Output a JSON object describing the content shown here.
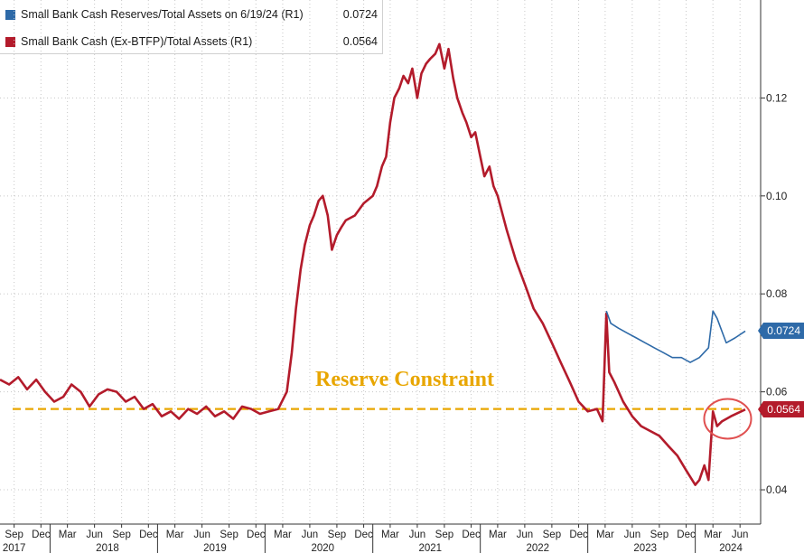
{
  "chart_data": {
    "type": "line",
    "legend": [
      {
        "name": "Small Bank Cash Reserves/Total Assets on 6/19/24 (R1)",
        "value": "0.0724",
        "color": "#2e6aa8"
      },
      {
        "name": "Small Bank Cash (Ex-BTFP)/Total Assets (R1)",
        "value": "0.0564",
        "color": "#b31b2b"
      }
    ],
    "legend_placement": "top-left",
    "y_axis": {
      "side": "right",
      "ylim": [
        0.033,
        0.14
      ],
      "ticks": [
        {
          "value": 0.04,
          "label": "0.04"
        },
        {
          "value": 0.06,
          "label": "0.06"
        },
        {
          "value": 0.08,
          "label": "0.08"
        },
        {
          "value": 0.1,
          "label": "0.10"
        },
        {
          "value": 0.12,
          "label": "0.12"
        }
      ]
    },
    "x_axis": {
      "xlim": [
        "2017-07-15",
        "2024-08-10"
      ],
      "month_ticks": [
        {
          "date": "2017-09-01",
          "label": "Sep"
        },
        {
          "date": "2017-12-01",
          "label": "Dec"
        },
        {
          "date": "2018-03-01",
          "label": "Mar"
        },
        {
          "date": "2018-06-01",
          "label": "Jun"
        },
        {
          "date": "2018-09-01",
          "label": "Sep"
        },
        {
          "date": "2018-12-01",
          "label": "Dec"
        },
        {
          "date": "2019-03-01",
          "label": "Mar"
        },
        {
          "date": "2019-06-01",
          "label": "Jun"
        },
        {
          "date": "2019-09-01",
          "label": "Sep"
        },
        {
          "date": "2019-12-01",
          "label": "Dec"
        },
        {
          "date": "2020-03-01",
          "label": "Mar"
        },
        {
          "date": "2020-06-01",
          "label": "Jun"
        },
        {
          "date": "2020-09-01",
          "label": "Sep"
        },
        {
          "date": "2020-12-01",
          "label": "Dec"
        },
        {
          "date": "2021-03-01",
          "label": "Mar"
        },
        {
          "date": "2021-06-01",
          "label": "Jun"
        },
        {
          "date": "2021-09-01",
          "label": "Sep"
        },
        {
          "date": "2021-12-01",
          "label": "Dec"
        },
        {
          "date": "2022-03-01",
          "label": "Mar"
        },
        {
          "date": "2022-06-01",
          "label": "Jun"
        },
        {
          "date": "2022-09-01",
          "label": "Sep"
        },
        {
          "date": "2022-12-01",
          "label": "Dec"
        },
        {
          "date": "2023-03-01",
          "label": "Mar"
        },
        {
          "date": "2023-06-01",
          "label": "Jun"
        },
        {
          "date": "2023-09-01",
          "label": "Sep"
        },
        {
          "date": "2023-12-01",
          "label": "Dec"
        },
        {
          "date": "2024-03-01",
          "label": "Mar"
        },
        {
          "date": "2024-06-01",
          "label": "Jun"
        }
      ],
      "year_labels": [
        {
          "date": "2017-09-01",
          "label": "2017"
        },
        {
          "date": "2018-07-15",
          "label": "2018"
        },
        {
          "date": "2019-07-15",
          "label": "2019"
        },
        {
          "date": "2020-07-15",
          "label": "2020"
        },
        {
          "date": "2021-07-15",
          "label": "2021"
        },
        {
          "date": "2022-07-15",
          "label": "2022"
        },
        {
          "date": "2023-07-15",
          "label": "2023"
        },
        {
          "date": "2024-05-01",
          "label": "2024"
        }
      ],
      "year_separators": [
        "2018-01-01",
        "2019-01-01",
        "2020-01-01",
        "2021-01-01",
        "2022-01-01",
        "2023-01-01",
        "2024-01-01"
      ]
    },
    "grid": "vertical-dotted",
    "series": [
      {
        "key": "ex_btfp",
        "color": "#b31b2b",
        "points": [
          [
            "2017-07-15",
            0.0625
          ],
          [
            "2017-08-15",
            0.0615
          ],
          [
            "2017-09-15",
            0.063
          ],
          [
            "2017-10-15",
            0.0605
          ],
          [
            "2017-11-15",
            0.0625
          ],
          [
            "2017-12-15",
            0.06
          ],
          [
            "2018-01-15",
            0.058
          ],
          [
            "2018-02-15",
            0.059
          ],
          [
            "2018-03-15",
            0.0615
          ],
          [
            "2018-04-15",
            0.06
          ],
          [
            "2018-05-15",
            0.057
          ],
          [
            "2018-06-15",
            0.0595
          ],
          [
            "2018-07-15",
            0.0605
          ],
          [
            "2018-08-15",
            0.06
          ],
          [
            "2018-09-15",
            0.058
          ],
          [
            "2018-10-15",
            0.059
          ],
          [
            "2018-11-15",
            0.0565
          ],
          [
            "2018-12-15",
            0.0575
          ],
          [
            "2019-01-15",
            0.055
          ],
          [
            "2019-02-15",
            0.056
          ],
          [
            "2019-03-15",
            0.0545
          ],
          [
            "2019-04-15",
            0.0565
          ],
          [
            "2019-05-15",
            0.0555
          ],
          [
            "2019-06-15",
            0.057
          ],
          [
            "2019-07-15",
            0.055
          ],
          [
            "2019-08-15",
            0.056
          ],
          [
            "2019-09-15",
            0.0545
          ],
          [
            "2019-10-15",
            0.057
          ],
          [
            "2019-11-15",
            0.0565
          ],
          [
            "2019-12-15",
            0.0555
          ],
          [
            "2020-01-15",
            0.056
          ],
          [
            "2020-02-15",
            0.0565
          ],
          [
            "2020-03-15",
            0.06
          ],
          [
            "2020-04-01",
            0.068
          ],
          [
            "2020-04-15",
            0.077
          ],
          [
            "2020-05-01",
            0.085
          ],
          [
            "2020-05-15",
            0.09
          ],
          [
            "2020-06-01",
            0.094
          ],
          [
            "2020-06-15",
            0.096
          ],
          [
            "2020-07-01",
            0.099
          ],
          [
            "2020-07-15",
            0.1
          ],
          [
            "2020-08-01",
            0.096
          ],
          [
            "2020-08-15",
            0.089
          ],
          [
            "2020-09-01",
            0.092
          ],
          [
            "2020-09-15",
            0.0935
          ],
          [
            "2020-10-01",
            0.095
          ],
          [
            "2020-11-01",
            0.096
          ],
          [
            "2020-12-01",
            0.0985
          ],
          [
            "2021-01-01",
            0.1
          ],
          [
            "2021-01-15",
            0.102
          ],
          [
            "2021-02-01",
            0.106
          ],
          [
            "2021-02-15",
            0.108
          ],
          [
            "2021-03-01",
            0.115
          ],
          [
            "2021-03-15",
            0.12
          ],
          [
            "2021-04-01",
            0.122
          ],
          [
            "2021-04-15",
            0.1245
          ],
          [
            "2021-05-01",
            0.123
          ],
          [
            "2021-05-15",
            0.126
          ],
          [
            "2021-06-01",
            0.12
          ],
          [
            "2021-06-15",
            0.125
          ],
          [
            "2021-07-01",
            0.127
          ],
          [
            "2021-07-15",
            0.128
          ],
          [
            "2021-08-01",
            0.129
          ],
          [
            "2021-08-15",
            0.131
          ],
          [
            "2021-09-01",
            0.126
          ],
          [
            "2021-09-15",
            0.13
          ],
          [
            "2021-10-01",
            0.124
          ],
          [
            "2021-10-15",
            0.12
          ],
          [
            "2021-11-01",
            0.117
          ],
          [
            "2021-11-15",
            0.115
          ],
          [
            "2021-12-01",
            0.112
          ],
          [
            "2021-12-15",
            0.113
          ],
          [
            "2022-01-01",
            0.108
          ],
          [
            "2022-01-15",
            0.104
          ],
          [
            "2022-02-01",
            0.106
          ],
          [
            "2022-02-15",
            0.102
          ],
          [
            "2022-03-01",
            0.1
          ],
          [
            "2022-04-01",
            0.093
          ],
          [
            "2022-05-01",
            0.087
          ],
          [
            "2022-06-01",
            0.082
          ],
          [
            "2022-07-01",
            0.077
          ],
          [
            "2022-08-01",
            0.074
          ],
          [
            "2022-09-01",
            0.07
          ],
          [
            "2022-10-01",
            0.066
          ],
          [
            "2022-11-01",
            0.062
          ],
          [
            "2022-12-01",
            0.058
          ],
          [
            "2023-01-01",
            0.056
          ],
          [
            "2023-02-01",
            0.0565
          ],
          [
            "2023-02-20",
            0.054
          ],
          [
            "2023-03-05",
            0.076
          ],
          [
            "2023-03-15",
            0.064
          ],
          [
            "2023-04-01",
            0.062
          ],
          [
            "2023-05-01",
            0.058
          ],
          [
            "2023-06-01",
            0.055
          ],
          [
            "2023-07-01",
            0.053
          ],
          [
            "2023-08-01",
            0.052
          ],
          [
            "2023-09-01",
            0.051
          ],
          [
            "2023-10-01",
            0.049
          ],
          [
            "2023-11-01",
            0.047
          ],
          [
            "2023-12-01",
            0.044
          ],
          [
            "2024-01-01",
            0.041
          ],
          [
            "2024-01-15",
            0.042
          ],
          [
            "2024-02-01",
            0.045
          ],
          [
            "2024-02-15",
            0.042
          ],
          [
            "2024-03-01",
            0.056
          ],
          [
            "2024-03-15",
            0.053
          ],
          [
            "2024-04-01",
            0.054
          ],
          [
            "2024-05-01",
            0.055
          ],
          [
            "2024-06-19",
            0.0564
          ]
        ]
      },
      {
        "key": "reserves",
        "color": "#2e6aa8",
        "points": [
          [
            "2023-03-05",
            0.0765
          ],
          [
            "2023-03-20",
            0.074
          ],
          [
            "2023-04-15",
            0.073
          ],
          [
            "2023-05-15",
            0.072
          ],
          [
            "2023-06-15",
            0.071
          ],
          [
            "2023-07-15",
            0.07
          ],
          [
            "2023-08-15",
            0.069
          ],
          [
            "2023-09-15",
            0.068
          ],
          [
            "2023-10-15",
            0.067
          ],
          [
            "2023-11-15",
            0.067
          ],
          [
            "2023-12-15",
            0.066
          ],
          [
            "2024-01-15",
            0.067
          ],
          [
            "2024-02-15",
            0.069
          ],
          [
            "2024-03-01",
            0.0765
          ],
          [
            "2024-03-15",
            0.075
          ],
          [
            "2024-04-15",
            0.07
          ],
          [
            "2024-05-15",
            0.071
          ],
          [
            "2024-06-19",
            0.0724
          ]
        ]
      }
    ],
    "price_tags": [
      {
        "label": "0.0724",
        "value": 0.0724,
        "color": "#2e6aa8"
      },
      {
        "label": "0.0564",
        "value": 0.0564,
        "color": "#b31b2b"
      }
    ],
    "reference_line": {
      "value": 0.0565,
      "color": "#e8a600",
      "style": "dashed"
    },
    "annotation": {
      "text": "Reserve Constraint"
    },
    "highlight_circle": {
      "date": "2024-04-20",
      "value": 0.0545,
      "color": "#e05050"
    }
  }
}
